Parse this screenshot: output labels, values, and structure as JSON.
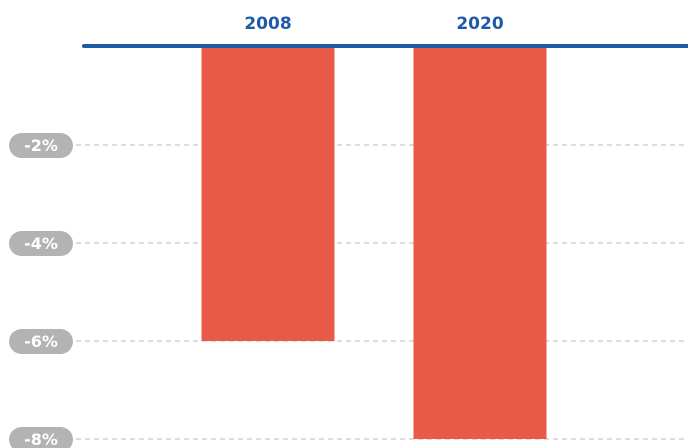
{
  "chart_data": {
    "type": "bar",
    "categories": [
      "2008",
      "2020"
    ],
    "values": [
      -6.0,
      -8.0
    ],
    "ylim": [
      0,
      -8
    ],
    "yticks": [
      "-2%",
      "-4%",
      "-6%",
      "-8%"
    ],
    "ytick_values": [
      -2,
      -4,
      -6,
      -8
    ],
    "grid": true,
    "title": "",
    "xlabel": "",
    "ylabel": "",
    "colors": {
      "bar": "#e85a47",
      "axis": "#1f5aa6",
      "category_text": "#1f5aa6",
      "tick_pill": "#b3b3b3",
      "tick_text": "#ffffff",
      "grid": "#b8b8b8"
    }
  }
}
